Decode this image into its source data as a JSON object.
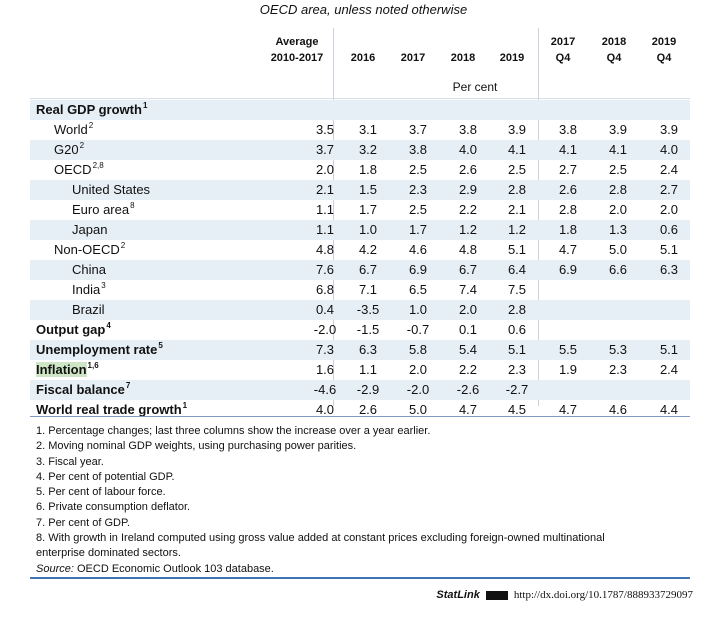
{
  "subtitle": "OECD area, unless noted otherwise",
  "columns": {
    "avg_line1": "Average",
    "avg_line2": "2010-2017",
    "y2016": "2016",
    "y2017": "2017",
    "y2018": "2018",
    "y2019": "2019",
    "q2017_line1": "2017",
    "q2017_line2": "Q4",
    "q2018_line1": "2018",
    "q2018_line2": "Q4",
    "q2019_line1": "2019",
    "q2019_line2": "Q4"
  },
  "unit_label": "Per cent",
  "rows": [
    {
      "label": "Real GDP growth",
      "sup": "1",
      "bold": true,
      "indent": 0,
      "values": [
        "",
        "",
        "",
        "",
        "",
        "",
        "",
        ""
      ]
    },
    {
      "label": "World",
      "sup": "2",
      "bold": false,
      "indent": 1,
      "values": [
        "3.5",
        "3.1",
        "3.7",
        "3.8",
        "3.9",
        "3.8",
        "3.9",
        "3.9"
      ]
    },
    {
      "label": "G20",
      "sup": "2",
      "bold": false,
      "indent": 1,
      "values": [
        "3.7",
        "3.2",
        "3.8",
        "4.0",
        "4.1",
        "4.1",
        "4.1",
        "4.0"
      ]
    },
    {
      "label": "OECD",
      "sup": "2,8",
      "bold": false,
      "indent": 1,
      "values": [
        "2.0",
        "1.8",
        "2.5",
        "2.6",
        "2.5",
        "2.7",
        "2.5",
        "2.4"
      ]
    },
    {
      "label": "United States",
      "sup": "",
      "bold": false,
      "indent": 2,
      "values": [
        "2.1",
        "1.5",
        "2.3",
        "2.9",
        "2.8",
        "2.6",
        "2.8",
        "2.7"
      ]
    },
    {
      "label": "Euro area",
      "sup": "8",
      "bold": false,
      "indent": 2,
      "values": [
        "1.1",
        "1.7",
        "2.5",
        "2.2",
        "2.1",
        "2.8",
        "2.0",
        "2.0"
      ]
    },
    {
      "label": "Japan",
      "sup": "",
      "bold": false,
      "indent": 2,
      "values": [
        "1.1",
        "1.0",
        "1.7",
        "1.2",
        "1.2",
        "1.8",
        "1.3",
        "0.6"
      ]
    },
    {
      "label": "Non-OECD",
      "sup": "2",
      "bold": false,
      "indent": 1,
      "values": [
        "4.8",
        "4.2",
        "4.6",
        "4.8",
        "5.1",
        "4.7",
        "5.0",
        "5.1"
      ]
    },
    {
      "label": "China",
      "sup": "",
      "bold": false,
      "indent": 2,
      "values": [
        "7.6",
        "6.7",
        "6.9",
        "6.7",
        "6.4",
        "6.9",
        "6.6",
        "6.3"
      ]
    },
    {
      "label": "India",
      "sup": "3",
      "bold": false,
      "indent": 2,
      "values": [
        "6.8",
        "7.1",
        "6.5",
        "7.4",
        "7.5",
        "",
        "",
        ""
      ]
    },
    {
      "label": "Brazil",
      "sup": "",
      "bold": false,
      "indent": 2,
      "values": [
        "0.4",
        "-3.5",
        "1.0",
        "2.0",
        "2.8",
        "",
        "",
        ""
      ]
    },
    {
      "label": "Output gap",
      "sup": "4",
      "bold": true,
      "indent": 0,
      "values": [
        "-2.0",
        "-1.5",
        "-0.7",
        "0.1",
        "0.6",
        "",
        "",
        ""
      ]
    },
    {
      "label": "Unemployment rate",
      "sup": "5",
      "bold": true,
      "indent": 0,
      "values": [
        "7.3",
        "6.3",
        "5.8",
        "5.4",
        "5.1",
        "5.5",
        "5.3",
        "5.1"
      ]
    },
    {
      "label": "Inflation",
      "sup": "1,6",
      "bold": true,
      "indent": 0,
      "highlight": true,
      "values": [
        "1.6",
        "1.1",
        "2.0",
        "2.2",
        "2.3",
        "1.9",
        "2.3",
        "2.4"
      ]
    },
    {
      "label": "Fiscal balance",
      "sup": "7",
      "bold": true,
      "indent": 0,
      "values": [
        "-4.6",
        "-2.9",
        "-2.0",
        "-2.6",
        "-2.7",
        "",
        "",
        ""
      ]
    },
    {
      "label": "World real trade growth",
      "sup": "1",
      "bold": true,
      "indent": 0,
      "values": [
        "4.0",
        "2.6",
        "5.0",
        "4.7",
        "4.5",
        "4.7",
        "4.6",
        "4.4"
      ]
    }
  ],
  "notes": [
    "1.  Percentage changes; last three columns show the increase over a year earlier.",
    "2.  Moving nominal GDP weights, using purchasing power parities.",
    "3.  Fiscal year.",
    "4.  Per cent of potential GDP.",
    "5.  Per cent of labour force.",
    "6.  Private consumption deflator.",
    "7.  Per cent of GDP.",
    "8.  With growth in Ireland computed using gross value added at constant prices excluding foreign-owned multinational",
    "     enterprise dominated sectors."
  ],
  "source_label": "Source:",
  "source_text": " OECD Economic Outlook 103 database.",
  "statlink_label": "StatLink",
  "statlink_url": "http://dx.doi.org/10.1787/888933729097"
}
